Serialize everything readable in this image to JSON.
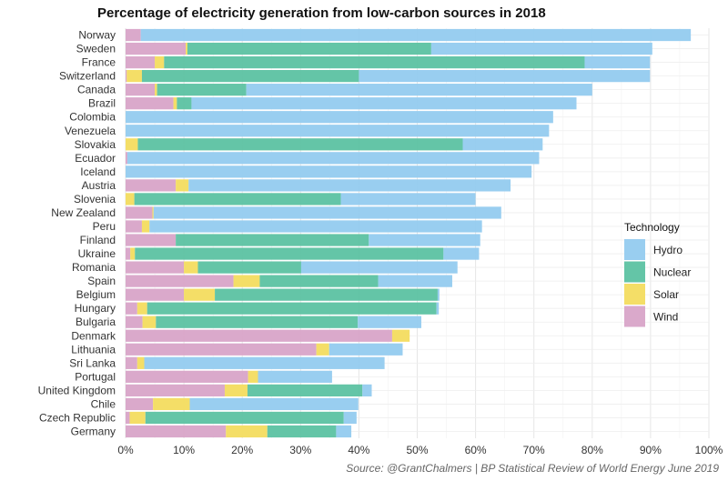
{
  "chart_data": {
    "type": "bar",
    "orientation": "horizontal",
    "stacked": true,
    "title": "Percentage of electricity generation from low-carbon sources in 2018",
    "caption": "Source: @GrantChalmers | BP Statistical Review of World Energy June 2019",
    "xlim": [
      0,
      100
    ],
    "x_ticks": [
      "0%",
      "10%",
      "20%",
      "30%",
      "40%",
      "50%",
      "60%",
      "70%",
      "80%",
      "90%",
      "100%"
    ],
    "grid": true,
    "legend_position": "right",
    "legend_title": "Technology",
    "categories": [
      "Norway",
      "Sweden",
      "France",
      "Switzerland",
      "Canada",
      "Brazil",
      "Colombia",
      "Venezuela",
      "Slovakia",
      "Ecuador",
      "Iceland",
      "Austria",
      "Slovenia",
      "New Zealand",
      "Peru",
      "Finland",
      "Ukraine",
      "Romania",
      "Spain",
      "Belgium",
      "Hungary",
      "Bulgaria",
      "Denmark",
      "Lithuania",
      "Sri Lanka",
      "Portugal",
      "United Kingdom",
      "Chile",
      "Czech Republic",
      "Germany"
    ],
    "series": [
      {
        "name": "Wind",
        "color": "#d8a4c8",
        "values": [
          2.6,
          10.3,
          5.0,
          0.2,
          5.0,
          8.2,
          0,
          0,
          0,
          0.3,
          0,
          8.6,
          0,
          4.6,
          2.8,
          8.6,
          0.8,
          10.0,
          18.5,
          10.0,
          2.0,
          2.9,
          45.7,
          32.7,
          2.0,
          21.0,
          17.0,
          4.7,
          0.7,
          17.2
        ]
      },
      {
        "name": "Solar",
        "color": "#f3dc5f",
        "values": [
          0,
          0.3,
          1.6,
          2.6,
          0.4,
          0.6,
          0,
          0,
          2.1,
          0,
          0,
          2.2,
          1.5,
          0.2,
          1.3,
          0,
          0.8,
          2.4,
          4.5,
          5.3,
          1.7,
          2.3,
          3.0,
          2.2,
          1.2,
          1.7,
          3.9,
          6.3,
          2.7,
          7.1
        ]
      },
      {
        "name": "Nuclear",
        "color": "#5cc2a2",
        "values": [
          0,
          41.8,
          72.1,
          37.2,
          15.3,
          2.5,
          0,
          0,
          55.7,
          0,
          0,
          0,
          35.4,
          0,
          0,
          33.1,
          52.9,
          17.7,
          20.3,
          38.2,
          49.6,
          34.6,
          0,
          0,
          0,
          0,
          19.7,
          0,
          34.0,
          11.8
        ]
      },
      {
        "name": "Hydro",
        "color": "#93cbef",
        "values": [
          94.3,
          37.9,
          11.2,
          49.9,
          59.3,
          66.0,
          73.3,
          72.6,
          13.7,
          70.6,
          69.6,
          55.2,
          23.1,
          59.6,
          57.0,
          19.1,
          6.1,
          26.8,
          12.7,
          0.3,
          0.4,
          10.9,
          0,
          12.6,
          41.2,
          12.7,
          1.6,
          28.9,
          2.2,
          2.6
        ]
      }
    ],
    "legend_order": [
      "Hydro",
      "Nuclear",
      "Solar",
      "Wind"
    ]
  }
}
